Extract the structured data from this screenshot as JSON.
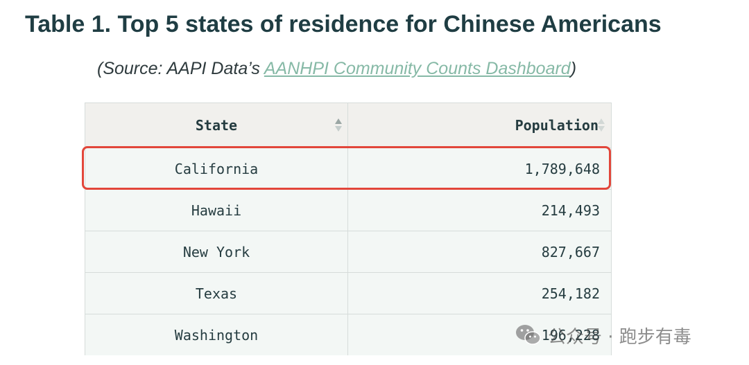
{
  "title": "Table 1. Top 5 states of residence for Chinese Americans",
  "source": {
    "prefix": "(Source: AAPI Data’s ",
    "link_text": "AANHPI Community Counts Dashboard",
    "suffix": ")"
  },
  "table": {
    "headers": {
      "state": "State",
      "population": "Population"
    },
    "rows": [
      {
        "state": "California",
        "population": "1,789,648"
      },
      {
        "state": "Hawaii",
        "population": "214,493"
      },
      {
        "state": "New York",
        "population": "827,667"
      },
      {
        "state": "Texas",
        "population": "254,182"
      },
      {
        "state": "Washington",
        "population": "196,228"
      }
    ],
    "highlighted_row": 0
  },
  "watermark": {
    "text": "公众号 · 跑步有毒",
    "icon": "wechat-icon"
  },
  "colors": {
    "title": "#1f3d43",
    "link": "#86b9a6",
    "header_bg": "#f1f0ed",
    "row_bg": "#f3f7f5",
    "highlight": "#e2463a"
  }
}
